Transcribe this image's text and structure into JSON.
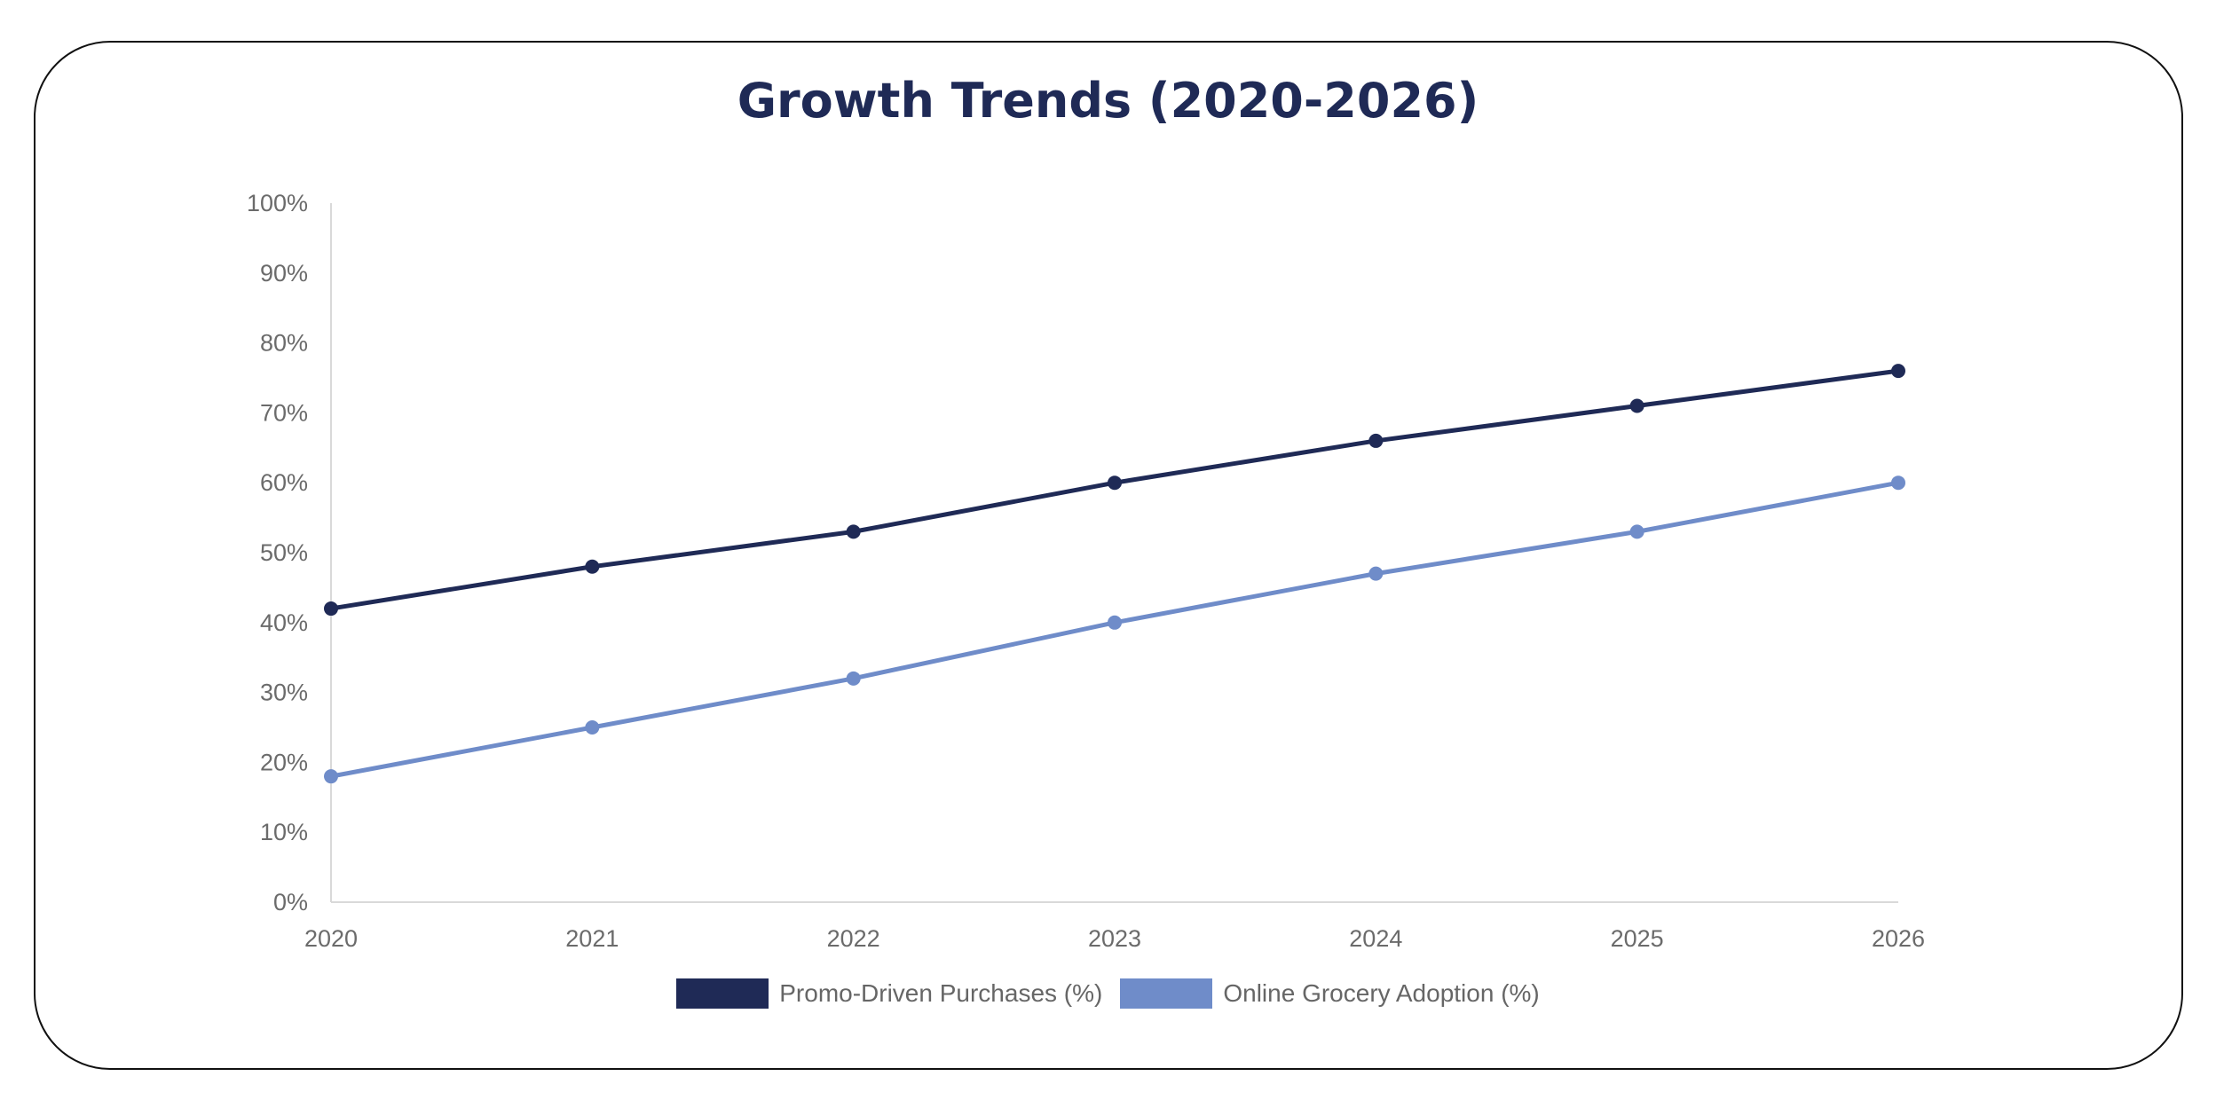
{
  "chart_data": {
    "type": "line",
    "title": "Growth Trends (2020-2026)",
    "xlabel": "",
    "ylabel": "",
    "x": [
      "2020",
      "2021",
      "2022",
      "2023",
      "2024",
      "2025",
      "2026"
    ],
    "ylim": [
      0,
      100
    ],
    "yticks": [
      "0%",
      "10%",
      "20%",
      "30%",
      "40%",
      "50%",
      "60%",
      "70%",
      "80%",
      "90%",
      "100%"
    ],
    "grid": false,
    "legend_position": "bottom",
    "series": [
      {
        "name": "Promo-Driven Purchases (%)",
        "color": "#1f2a56",
        "values": [
          42,
          48,
          53,
          60,
          66,
          71,
          76
        ]
      },
      {
        "name": "Online Grocery Adoption (%)",
        "color": "#6f8cc9",
        "values": [
          18,
          25,
          32,
          40,
          47,
          53,
          60
        ]
      }
    ]
  }
}
